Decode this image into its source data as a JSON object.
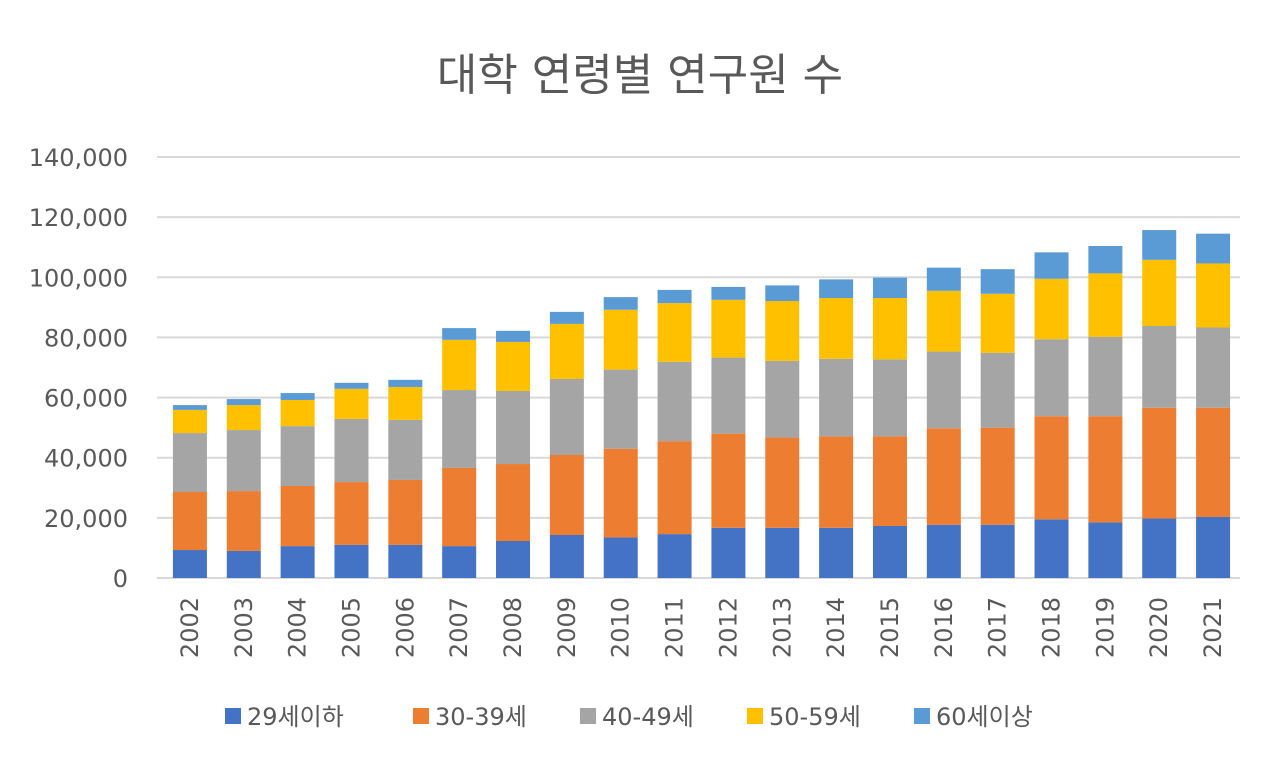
{
  "chart_data": {
    "type": "bar",
    "stacked": true,
    "title": "대학 연령별 연구원 수",
    "xlabel": "",
    "ylabel": "",
    "ylim": [
      0,
      140000
    ],
    "yticks": [
      "0",
      "20,000",
      "40,000",
      "60,000",
      "80,000",
      "100,000",
      "120,000",
      "140,000"
    ],
    "grid": true,
    "legend_position": "bottom",
    "categories": [
      "2002",
      "2003",
      "2004",
      "2005",
      "2006",
      "2007",
      "2008",
      "2009",
      "2010",
      "2011",
      "2012",
      "2013",
      "2014",
      "2015",
      "2016",
      "2017",
      "2018",
      "2019",
      "2020",
      "2021"
    ],
    "series": [
      {
        "name": "29세이하",
        "color": "#4472C4",
        "values": [
          9300,
          9000,
          10600,
          11000,
          11000,
          10600,
          12300,
          14300,
          13500,
          14600,
          16700,
          16700,
          16700,
          17300,
          17700,
          17700,
          19500,
          18500,
          19800,
          20300
        ]
      },
      {
        "name": "30-39세",
        "color": "#ED7D31",
        "values": [
          19300,
          19900,
          20000,
          20900,
          21600,
          26000,
          25600,
          26600,
          29500,
          30900,
          31300,
          30000,
          30400,
          29800,
          32100,
          32300,
          34300,
          35300,
          36800,
          36300
        ]
      },
      {
        "name": "40-49세",
        "color": "#A5A5A5",
        "values": [
          19600,
          20300,
          19900,
          21000,
          20000,
          25900,
          24300,
          25300,
          26300,
          26400,
          25300,
          25500,
          25800,
          25600,
          25500,
          24900,
          25600,
          26400,
          27200,
          26700
        ]
      },
      {
        "name": "50-59세",
        "color": "#FFC000",
        "values": [
          7700,
          8300,
          8700,
          10000,
          10900,
          16700,
          16300,
          18300,
          19900,
          19500,
          19200,
          19900,
          20200,
          20400,
          20200,
          19600,
          20100,
          21100,
          22000,
          21300
        ]
      },
      {
        "name": "60세이상",
        "color": "#5B9BD5",
        "values": [
          1600,
          2000,
          2300,
          2000,
          2400,
          3900,
          3700,
          4000,
          4200,
          4400,
          4300,
          5200,
          6200,
          6800,
          7700,
          8200,
          8800,
          9100,
          9900,
          9900
        ]
      }
    ]
  }
}
